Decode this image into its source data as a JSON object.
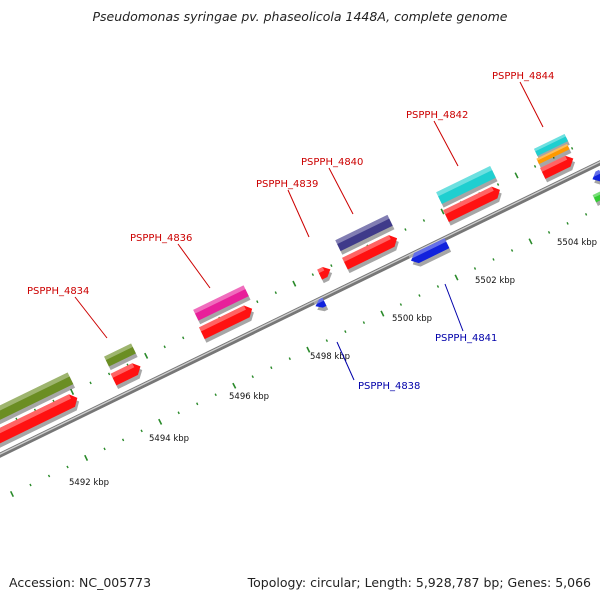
{
  "title": "Pseudomonas syringae pv. phaseolicola 1448A, complete genome",
  "footer": {
    "accession": "Accession: NC_005773",
    "summary": "Topology: circular; Length: 5,928,787 bp; Genes: 5,066"
  },
  "colors": {
    "backbone": "#888888",
    "tick": "#2a8a2a",
    "label_forward": "#cc0000",
    "label_reverse": "#0000aa"
  },
  "kbp_ticks": [
    {
      "label": "5492 kbp"
    },
    {
      "label": "5494 kbp"
    },
    {
      "label": "5496 kbp"
    },
    {
      "label": "5498 kbp"
    },
    {
      "label": "5500 kbp"
    },
    {
      "label": "5502 kbp"
    },
    {
      "label": "5504 kbp"
    }
  ],
  "gene_labels": [
    {
      "text": "PSPPH_4834",
      "strand": "forward"
    },
    {
      "text": "PSPPH_4836",
      "strand": "forward"
    },
    {
      "text": "PSPPH_4839",
      "strand": "forward"
    },
    {
      "text": "PSPPH_4840",
      "strand": "forward"
    },
    {
      "text": "PSPPH_4842",
      "strand": "forward"
    },
    {
      "text": "PSPPH_4844",
      "strand": "forward"
    },
    {
      "text": "PSPPH_4838",
      "strand": "reverse"
    },
    {
      "text": "PSPPH_4841",
      "strand": "reverse"
    }
  ],
  "features": [
    {
      "name": "olive",
      "color": "#6b8e23"
    },
    {
      "name": "pink",
      "color": "#e8209a"
    },
    {
      "name": "purple",
      "color": "#3f3a8a"
    },
    {
      "name": "cyan",
      "color": "#1fcfd0"
    },
    {
      "name": "orange",
      "color": "#ff9900"
    },
    {
      "name": "red",
      "color": "#ff1111"
    },
    {
      "name": "blue",
      "color": "#1122dd"
    },
    {
      "name": "green",
      "color": "#33cc33"
    }
  ]
}
